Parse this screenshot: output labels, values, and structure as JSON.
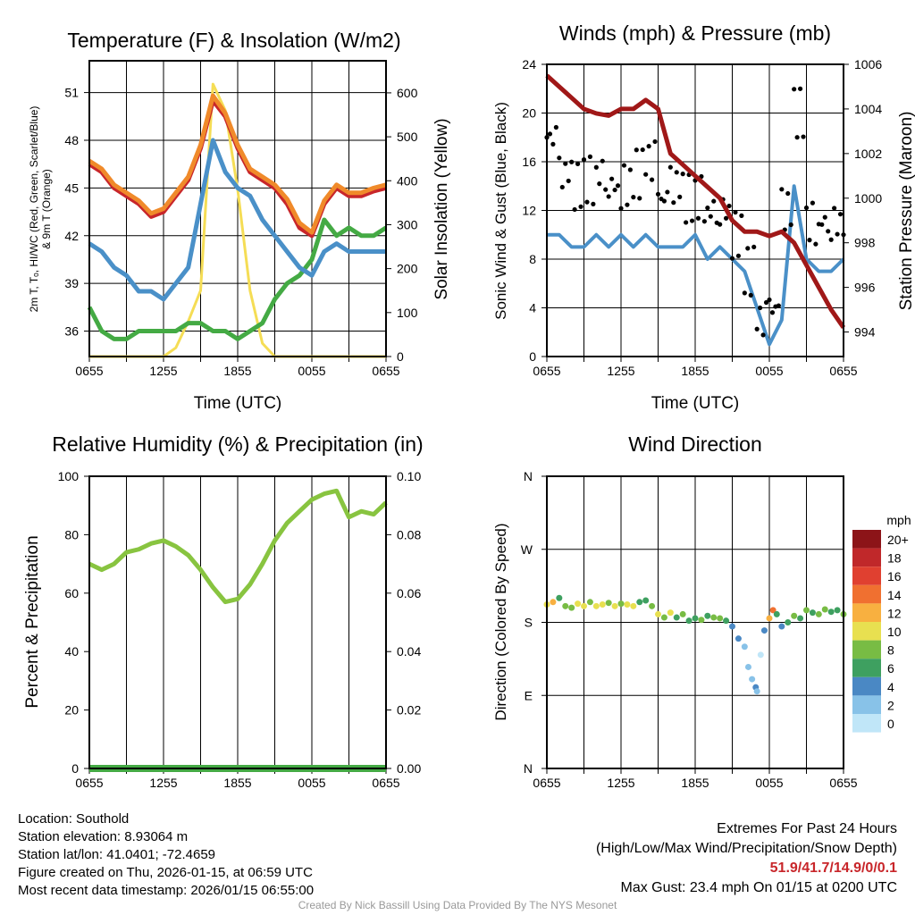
{
  "chart_data": [
    {
      "type": "line",
      "title": "Temperature (F) & Insolation (W/m2)",
      "xlabel": "Time (UTC)",
      "ylabel": "2m T, Td, HI/WC (Red, Green, Scarlet/Blue) & 9m T (Orange)",
      "ylabel_line1": "2m T, Tₒ, HI/WC (Red, Green, Scarlet/Blue)",
      "ylabel_line2": "& 9m T (Orange)",
      "y2label": "Solar Insolation (Yellow)",
      "ylim": [
        34.4,
        53
      ],
      "y2lim": [
        0,
        673
      ],
      "yticks": [
        36,
        39,
        42,
        45,
        48,
        51
      ],
      "y2ticks": [
        0,
        100,
        200,
        300,
        400,
        500,
        600
      ],
      "xticks": [
        "0655",
        "1255",
        "1855",
        "0055",
        "0655"
      ],
      "x_hours": 24,
      "series": [
        {
          "name": "9m T",
          "color": "#f08a2a",
          "axis": "left",
          "values": [
            46.7,
            46.2,
            45.2,
            44.7,
            44.2,
            43.4,
            43.7,
            44.7,
            45.7,
            47.7,
            50.8,
            49.7,
            47.7,
            46.2,
            45.7,
            45.2,
            44.3,
            42.8,
            42.2,
            44.2,
            45.2,
            44.7,
            44.7,
            45,
            45.2
          ]
        },
        {
          "name": "2m T",
          "color": "#c8262a",
          "axis": "left",
          "values": [
            46.5,
            46,
            45,
            44.5,
            44,
            43.2,
            43.5,
            44.5,
            45.5,
            47.5,
            50.5,
            49.5,
            47.5,
            46,
            45.5,
            45,
            44,
            42.5,
            42,
            44,
            45,
            44.5,
            44.5,
            44.8,
            45
          ]
        },
        {
          "name": "HI/WC",
          "color": "#4a90c8",
          "axis": "left",
          "values": [
            41.5,
            41,
            40,
            39.5,
            38.5,
            38.5,
            38,
            39,
            40,
            44,
            48,
            46,
            45,
            44.5,
            43,
            42,
            41,
            40,
            39.5,
            41,
            41.5,
            41,
            41,
            41,
            41
          ]
        },
        {
          "name": "Td",
          "color": "#44aa44",
          "axis": "left",
          "values": [
            37.5,
            36,
            35.5,
            35.5,
            36,
            36,
            36,
            36,
            36.5,
            36.5,
            36,
            36,
            35.5,
            36,
            36.5,
            38,
            39,
            39.5,
            40.5,
            43,
            42,
            42.5,
            42,
            42,
            42.5
          ]
        },
        {
          "name": "Solar Insolation",
          "color": "#f5dd55",
          "axis": "right",
          "values": [
            0,
            0,
            0,
            0,
            0,
            0,
            0,
            20,
            80,
            150,
            620,
            560,
            380,
            150,
            30,
            0,
            0,
            0,
            0,
            0,
            0,
            0,
            0,
            0,
            0
          ]
        }
      ]
    },
    {
      "type": "line",
      "title": "Winds (mph) & Pressure (mb)",
      "xlabel": "Time (UTC)",
      "ylabel": "Sonic Wind & Gust (Blue, Black)",
      "y2label": "Station Pressure (Maroon)",
      "ylim": [
        0,
        24
      ],
      "y2lim": [
        992.9,
        1006
      ],
      "yticks": [
        0,
        4,
        8,
        12,
        16,
        20,
        24
      ],
      "y2ticks": [
        994,
        996,
        998,
        1000,
        1002,
        1004,
        1006
      ],
      "xticks": [
        "0655",
        "1255",
        "1855",
        "0055",
        "0655"
      ],
      "x_hours": 24,
      "series": [
        {
          "name": "Sonic Wind",
          "color": "#4a90c8",
          "axis": "left",
          "values": [
            10,
            10,
            9,
            9,
            10,
            9,
            10,
            9,
            10,
            9,
            9,
            9,
            10,
            8,
            9,
            8,
            7,
            4,
            1,
            3,
            14,
            8,
            7,
            7,
            8
          ]
        },
        {
          "name": "Gust",
          "color": "#000000",
          "axis": "left",
          "type": "scatter",
          "values": [
            18,
            15,
            14,
            14.5,
            15,
            14,
            14,
            15,
            16,
            13,
            14,
            13,
            13,
            12,
            12,
            10,
            7,
            3,
            4,
            12,
            20,
            11,
            11,
            11,
            12
          ]
        },
        {
          "name": "Station Pressure",
          "color": "#a01818",
          "axis": "right",
          "values": [
            1005.5,
            1005,
            1004.5,
            1004,
            1003.8,
            1003.7,
            1004,
            1004,
            1004.4,
            1004,
            1002,
            1001.5,
            1001,
            1000.5,
            1000,
            999,
            998.5,
            998.5,
            998.3,
            998.5,
            998,
            997,
            996,
            995,
            994.2
          ]
        }
      ]
    },
    {
      "type": "line",
      "title": "Relative Humidity (%) & Precipitation (in)",
      "ylabel": "Percent & Precipitation",
      "ylim": [
        0,
        100
      ],
      "y2lim": [
        0,
        0.1
      ],
      "yticks": [
        0,
        20,
        40,
        60,
        80,
        100
      ],
      "y2ticks": [
        "0.00",
        "0.02",
        "0.04",
        "0.06",
        "0.08",
        "0.10"
      ],
      "xticks": [
        "0655",
        "1255",
        "1855",
        "0055",
        "0655"
      ],
      "x_hours": 24,
      "series": [
        {
          "name": "Relative Humidity",
          "color": "#88c440",
          "axis": "left",
          "values": [
            70,
            68,
            70,
            74,
            75,
            77,
            78,
            76,
            73,
            68,
            62,
            57,
            58,
            63,
            70,
            78,
            84,
            88,
            92,
            94,
            95,
            86,
            88,
            87,
            91
          ]
        },
        {
          "name": "Precipitation",
          "color": "#44aa44",
          "axis": "right",
          "values": [
            0,
            0,
            0,
            0,
            0,
            0,
            0,
            0,
            0,
            0,
            0,
            0,
            0,
            0,
            0,
            0,
            0,
            0,
            0,
            0,
            0,
            0,
            0,
            0,
            0
          ]
        }
      ]
    },
    {
      "type": "scatter",
      "title": "Wind Direction",
      "ylabel": "Direction (Colored By Speed)",
      "yticks": [
        {
          "label": "N",
          "deg": 0
        },
        {
          "label": "E",
          "deg": 90
        },
        {
          "label": "S",
          "deg": 180
        },
        {
          "label": "W",
          "deg": 270
        },
        {
          "label": "N",
          "deg": 360
        }
      ],
      "xticks": [
        "0655",
        "1255",
        "1855",
        "0055",
        "0655"
      ],
      "x_hours": 24,
      "colorbar": {
        "title": "mph",
        "labels": [
          "0",
          "2",
          "4",
          "6",
          "8",
          "10",
          "12",
          "14",
          "16",
          "18",
          "20+"
        ],
        "colors": [
          "#c0e6f8",
          "#88c2e8",
          "#4a88c4",
          "#3ea060",
          "#78bc44",
          "#e8e050",
          "#f8b040",
          "#f07030",
          "#e04030",
          "#c0282a",
          "#8c1418"
        ]
      },
      "points": [
        [
          0,
          202,
          10
        ],
        [
          0.5,
          205,
          12
        ],
        [
          1,
          210,
          6
        ],
        [
          1.5,
          200,
          9
        ],
        [
          2,
          198,
          8
        ],
        [
          2.5,
          203,
          10
        ],
        [
          3,
          200,
          11
        ],
        [
          3.5,
          205,
          9
        ],
        [
          4,
          200,
          10
        ],
        [
          4.5,
          202,
          11
        ],
        [
          5,
          204,
          8
        ],
        [
          5.5,
          200,
          10
        ],
        [
          6,
          203,
          9
        ],
        [
          6.5,
          202,
          11
        ],
        [
          7,
          200,
          10
        ],
        [
          7.5,
          205,
          7
        ],
        [
          8,
          207,
          6
        ],
        [
          8.5,
          200,
          9
        ],
        [
          9,
          190,
          10
        ],
        [
          9.5,
          186,
          8
        ],
        [
          10,
          192,
          11
        ],
        [
          10.5,
          186,
          7
        ],
        [
          11,
          190,
          9
        ],
        [
          11.5,
          182,
          6
        ],
        [
          12,
          185,
          7
        ],
        [
          12.5,
          183,
          8
        ],
        [
          13,
          188,
          6
        ],
        [
          13.5,
          186,
          9
        ],
        [
          14,
          185,
          8
        ],
        [
          14.5,
          182,
          7
        ],
        [
          15,
          175,
          4
        ],
        [
          15.5,
          160,
          4
        ],
        [
          16,
          150,
          2
        ],
        [
          16.3,
          125,
          2
        ],
        [
          16.6,
          110,
          3
        ],
        [
          16.9,
          100,
          4
        ],
        [
          17,
          95,
          2
        ],
        [
          17.3,
          140,
          1
        ],
        [
          17.6,
          170,
          4
        ],
        [
          18,
          185,
          13
        ],
        [
          18.3,
          195,
          15
        ],
        [
          18.6,
          190,
          6
        ],
        [
          19,
          175,
          5
        ],
        [
          19.5,
          180,
          7
        ],
        [
          20,
          188,
          8
        ],
        [
          20.5,
          185,
          6
        ],
        [
          21,
          195,
          9
        ],
        [
          21.5,
          192,
          7
        ],
        [
          22,
          190,
          8
        ],
        [
          22.5,
          196,
          8
        ],
        [
          23,
          193,
          6
        ],
        [
          23.5,
          195,
          7
        ],
        [
          24,
          190,
          8
        ]
      ]
    }
  ],
  "footer": {
    "location": "Location: Southold",
    "elevation": "Station elevation: 8.93064 m",
    "latlon": "Station lat/lon: 41.0401; -72.4659",
    "created": "Figure created on Thu, 2026-01-15, at 06:59 UTC",
    "recent": "Most recent data timestamp: 2026/01/15 06:55:00",
    "extremes_title": "Extremes For Past 24 Hours",
    "extremes_sub": "(High/Low/Max Wind/Precipitation/Snow Depth)",
    "extremes_values": "51.9/41.7/14.9/0/0.1",
    "max_gust": "Max Gust: 23.4 mph On 01/15 at 0200 UTC",
    "credit": "Created By Nick Bassill Using Data Provided By The NYS Mesonet"
  }
}
